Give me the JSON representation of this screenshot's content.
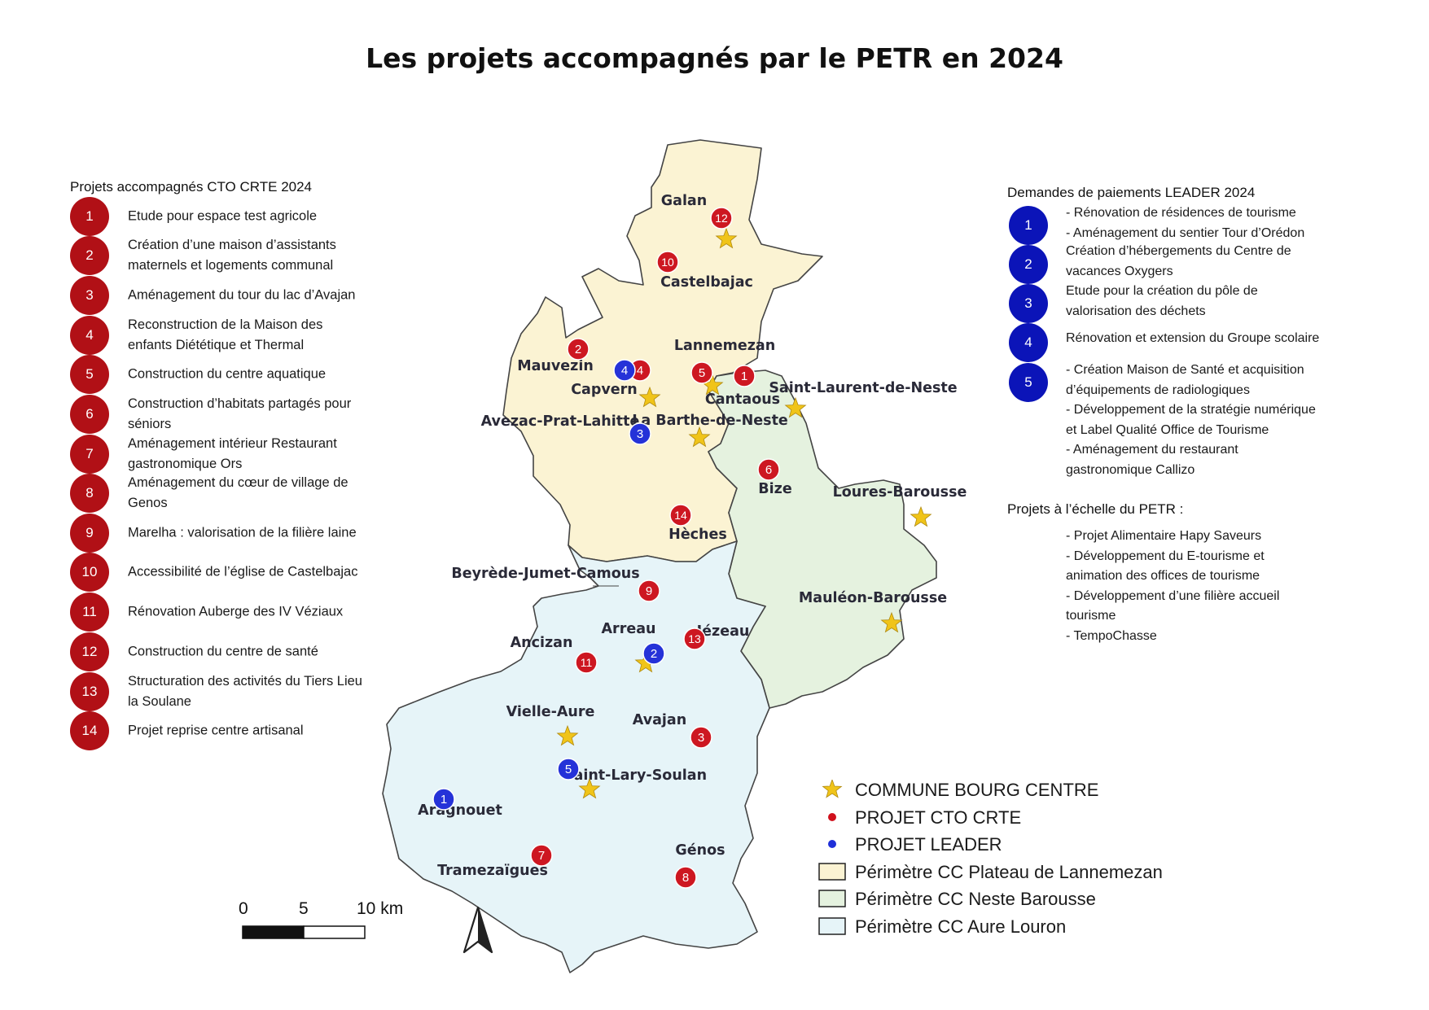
{
  "title": "Les projets accompagnés par le PETR en 2024",
  "cto_panel": {
    "heading": "Projets accompagnés CTO CRTE 2024",
    "items": [
      {
        "num": "1",
        "lines": [
          "Etude pour espace test agricole"
        ]
      },
      {
        "num": "2",
        "lines": [
          "Création d’une maison d’assistants",
          "maternels et logements communal"
        ]
      },
      {
        "num": "3",
        "lines": [
          "Aménagement du tour du lac d’Avajan"
        ]
      },
      {
        "num": "4",
        "lines": [
          "Reconstruction de la Maison des",
          "enfants Diététique et Thermal"
        ]
      },
      {
        "num": "5",
        "lines": [
          "Construction du centre aquatique"
        ]
      },
      {
        "num": "6",
        "lines": [
          "Construction d’habitats partagés pour",
          "séniors"
        ]
      },
      {
        "num": "7",
        "lines": [
          "Aménagement intérieur Restaurant",
          "gastronomique Ors"
        ]
      },
      {
        "num": "8",
        "lines": [
          "Aménagement du cœur de village de",
          "Genos"
        ]
      },
      {
        "num": "9",
        "lines": [
          "Marelha : valorisation de la filière laine"
        ]
      },
      {
        "num": "10",
        "lines": [
          "Accessibilité de l’église de Castelbajac"
        ]
      },
      {
        "num": "11",
        "lines": [
          "Rénovation Auberge des IV Véziaux"
        ]
      },
      {
        "num": "12",
        "lines": [
          "Construction du centre de santé"
        ]
      },
      {
        "num": "13",
        "lines": [
          "Structuration des activités du Tiers Lieu",
          "la Soulane"
        ]
      },
      {
        "num": "14",
        "lines": [
          "Projet reprise centre artisanal"
        ]
      }
    ]
  },
  "leader_panel": {
    "heading": "Demandes de paiements LEADER 2024",
    "items": [
      {
        "num": "1",
        "lines": [
          "- Rénovation de résidences de tourisme",
          "- Aménagement du sentier Tour d’Orédon"
        ]
      },
      {
        "num": "2",
        "lines": [
          "Création d’hébergements du Centre de",
          "vacances Oxygers"
        ]
      },
      {
        "num": "3",
        "lines": [
          "Etude pour la création du pôle de",
          "valorisation des déchets"
        ]
      },
      {
        "num": "4",
        "lines": [
          "Rénovation et extension du Groupe scolaire"
        ]
      },
      {
        "num": "5",
        "lines": [
          "- Création Maison de Santé et acquisition",
          "d’équipements de radiologiques",
          "- Développement de la stratégie numérique",
          "et Label Qualité Office de Tourisme",
          "- Aménagement du restaurant",
          "gastronomique Callizo"
        ]
      }
    ]
  },
  "petr_panel": {
    "heading": "Projets à l’échelle du PETR :",
    "lines": [
      "- Projet Alimentaire Hapy Saveurs",
      "- Développement du E-tourisme et",
      "animation des offices de tourisme",
      "- Développement d’une filière accueil",
      "tourisme",
      "- TempoChasse"
    ]
  },
  "legend": {
    "items": [
      {
        "label": "COMMUNE BOURG CENTRE",
        "symbol": "star",
        "color": "#f0c419"
      },
      {
        "label": "PROJET CTO CRTE",
        "symbol": "red-dot",
        "color": "#d0101c"
      },
      {
        "label": "PROJET LEADER",
        "symbol": "blue-dot",
        "color": "#1f2fd8"
      },
      {
        "label": "Périmètre CC Plateau de Lannemezan",
        "symbol": "box",
        "color": "#fbf3d3"
      },
      {
        "label": "Périmètre CC Neste Barousse",
        "symbol": "box",
        "color": "#e5f2df"
      },
      {
        "label": "Périmètre CC Aure Louron",
        "symbol": "box",
        "color": "#e6f4f8"
      }
    ]
  },
  "scale_bar": {
    "labels": [
      "0",
      "5",
      "10 km"
    ]
  },
  "map": {
    "colors": {
      "plateau": "#fbf3d3",
      "neste": "#e5f2df",
      "aure": "#e6f4f8",
      "border": "#444444",
      "star": "#f0c419",
      "cto": "#cd1721",
      "leader": "#2532d8"
    },
    "towns": [
      "Galan",
      "Castelbajac",
      "Lannemezan",
      "Mauvezin",
      "Capvern",
      "Cantaous",
      "Saint-Laurent-de-Neste",
      "Avezac-Prat-Lahitte",
      "La Barthe-de-Neste",
      "Bize",
      "Loures-Barousse",
      "Hèches",
      "Beyrède-Jumet-Camous",
      "Mauléon-Barousse",
      "Arreau",
      "Jézeau",
      "Ancizan",
      "Vielle-Aure",
      "Avajan",
      "Saint-Lary-Soulan",
      "Aragnouet",
      "Génos",
      "Tramezaïgues"
    ],
    "cto_markers": [
      "12",
      "10",
      "2",
      "4",
      "5",
      "1",
      "6",
      "14",
      "9",
      "13",
      "11",
      "3",
      "7",
      "8"
    ],
    "leader_markers": [
      "4",
      "3",
      "2",
      "5",
      "1"
    ]
  }
}
